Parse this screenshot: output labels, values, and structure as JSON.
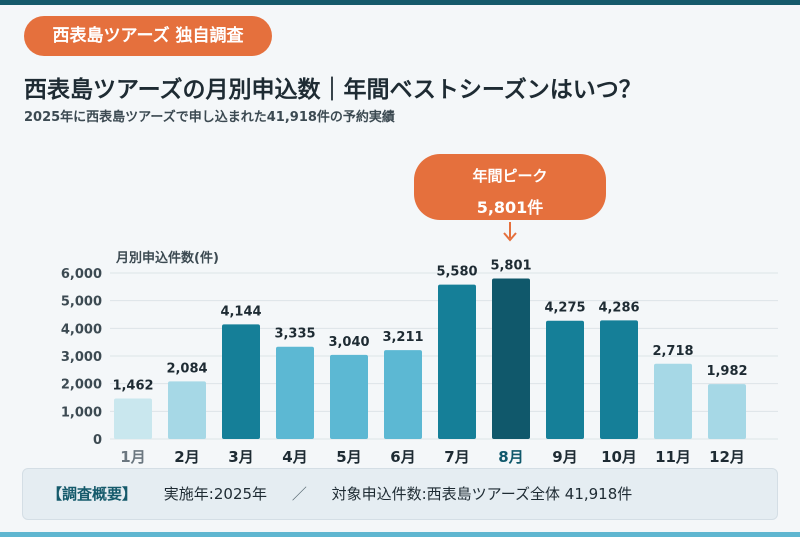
{
  "header": {
    "badge": "西表島ツアーズ 独自調査",
    "title": "西表島ツアーズの月別申込数｜年間ベストシーズンはいつ？",
    "subtitle": "2025年に西表島ツアーズで申し込まれた41,918件の予約実績"
  },
  "callout": {
    "label": "年間ピーク",
    "value": "5,801件"
  },
  "chart_data": {
    "type": "bar",
    "ylabel": "月別申込件数(件)",
    "ylim": [
      0,
      6000
    ],
    "yticks": [
      "0",
      "1,000",
      "2,000",
      "3,000",
      "4,000",
      "5,000",
      "6,000"
    ],
    "grid": true,
    "categories": [
      "1月",
      "2月",
      "3月",
      "4月",
      "5月",
      "6月",
      "7月",
      "8月",
      "9月",
      "10月",
      "11月",
      "12月"
    ],
    "values": [
      1462,
      2084,
      4144,
      3335,
      3040,
      3211,
      5580,
      5801,
      4275,
      4286,
      2718,
      1982
    ],
    "labels": [
      "1,462",
      "2,084",
      "4,144",
      "3,335",
      "3,040",
      "3,211",
      "5,580",
      "5,801",
      "4,275",
      "4,286",
      "2,718",
      "1,982"
    ],
    "colors": [
      "#c9e7ee",
      "#a6d8e6",
      "#157f98",
      "#5cb8d3",
      "#5cb8d3",
      "#5cb8d3",
      "#157f98",
      "#10586b",
      "#157f98",
      "#157f98",
      "#a6d8e6",
      "#a6d8e6"
    ],
    "tick_colors": [
      "#6b7780",
      "#1e2b33",
      "#1e2b33",
      "#1e2b33",
      "#1e2b33",
      "#1e2b33",
      "#1e2b33",
      "#10586b",
      "#1e2b33",
      "#1e2b33",
      "#1e2b33",
      "#1e2b33"
    ]
  },
  "footer": {
    "tag": "【調査概要】",
    "period": "実施年:2025年",
    "separator": "／",
    "scope": "対象申込件数:西表島ツアーズ全体 41,918件"
  },
  "colors": {
    "accent": "#e5703d",
    "primary": "#155a6b"
  }
}
